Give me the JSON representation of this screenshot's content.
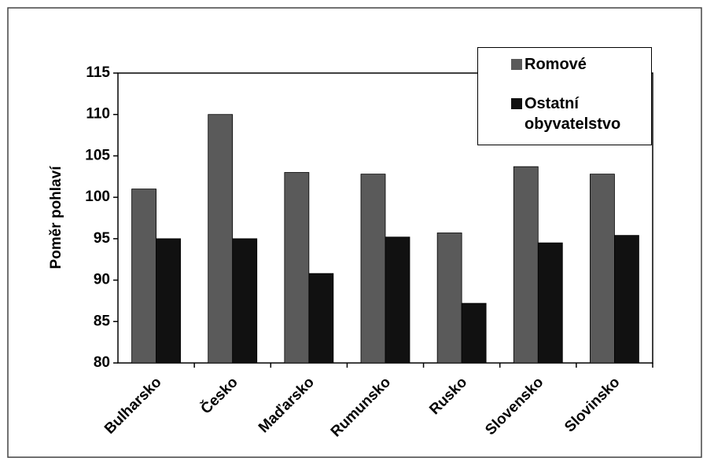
{
  "chart_data": {
    "type": "bar",
    "y_label": "Poměr pohlaví",
    "categories": [
      "Bulharsko",
      "Česko",
      "Maďarsko",
      "Rumunsko",
      "Rusko",
      "Slovensko",
      "Slovinsko"
    ],
    "series": [
      {
        "name": "Romové",
        "color": "#5a5a5a",
        "values": [
          101,
          110,
          103,
          102.8,
          95.7,
          103.7,
          102.8
        ]
      },
      {
        "name": "Ostatní obyvatelstvo",
        "color": "#111111",
        "values": [
          95,
          95,
          90.8,
          95.2,
          87.2,
          94.5,
          95.4
        ]
      }
    ],
    "ylim": [
      80,
      115
    ],
    "yticks": [
      80,
      85,
      90,
      95,
      100,
      105,
      110,
      115
    ],
    "legend": "top-right"
  }
}
